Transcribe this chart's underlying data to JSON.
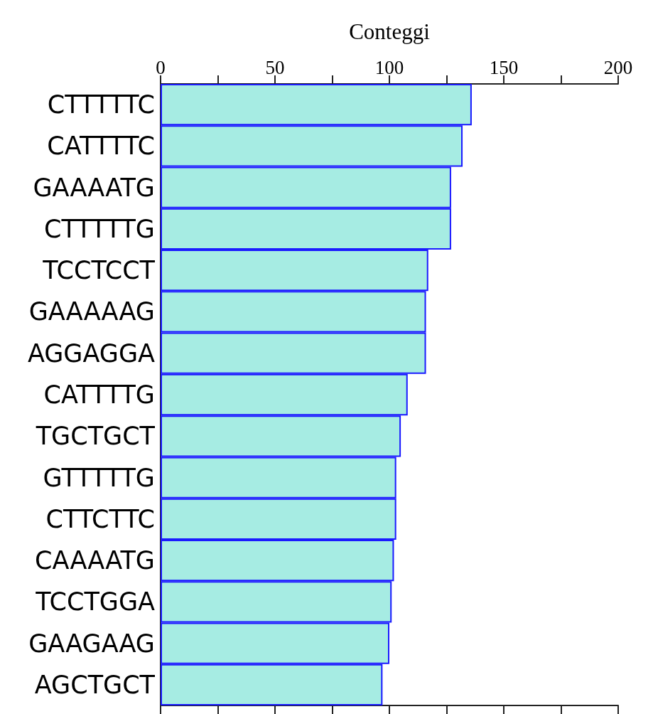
{
  "chart_data": {
    "type": "bar",
    "orientation": "horizontal",
    "xlabel": "Conteggi",
    "categories": [
      "CTTTTTC",
      "CATTTTC",
      "GAAAATG",
      "CTTTTTG",
      "TCCTCCT",
      "GAAAAAG",
      "AGGAGGA",
      "CATTTTG",
      "TGCTGCT",
      "GTTTTTG",
      "CTTCTTC",
      "CAAAATG",
      "TCCTGGA",
      "GAAGAAG",
      "AGCTGCT"
    ],
    "values": [
      136,
      132,
      127,
      127,
      117,
      116,
      116,
      108,
      105,
      103,
      103,
      102,
      101,
      100,
      97
    ],
    "color": "#a6ece3",
    "xlim": [
      0,
      200
    ],
    "xticks": [
      0,
      {
        "value": 25,
        "label": null
      },
      50,
      {
        "value": 75,
        "label": null
      },
      100,
      {
        "value": 125,
        "label": null
      },
      150,
      {
        "value": 175,
        "label": null
      },
      200
    ],
    "grid": false
  }
}
